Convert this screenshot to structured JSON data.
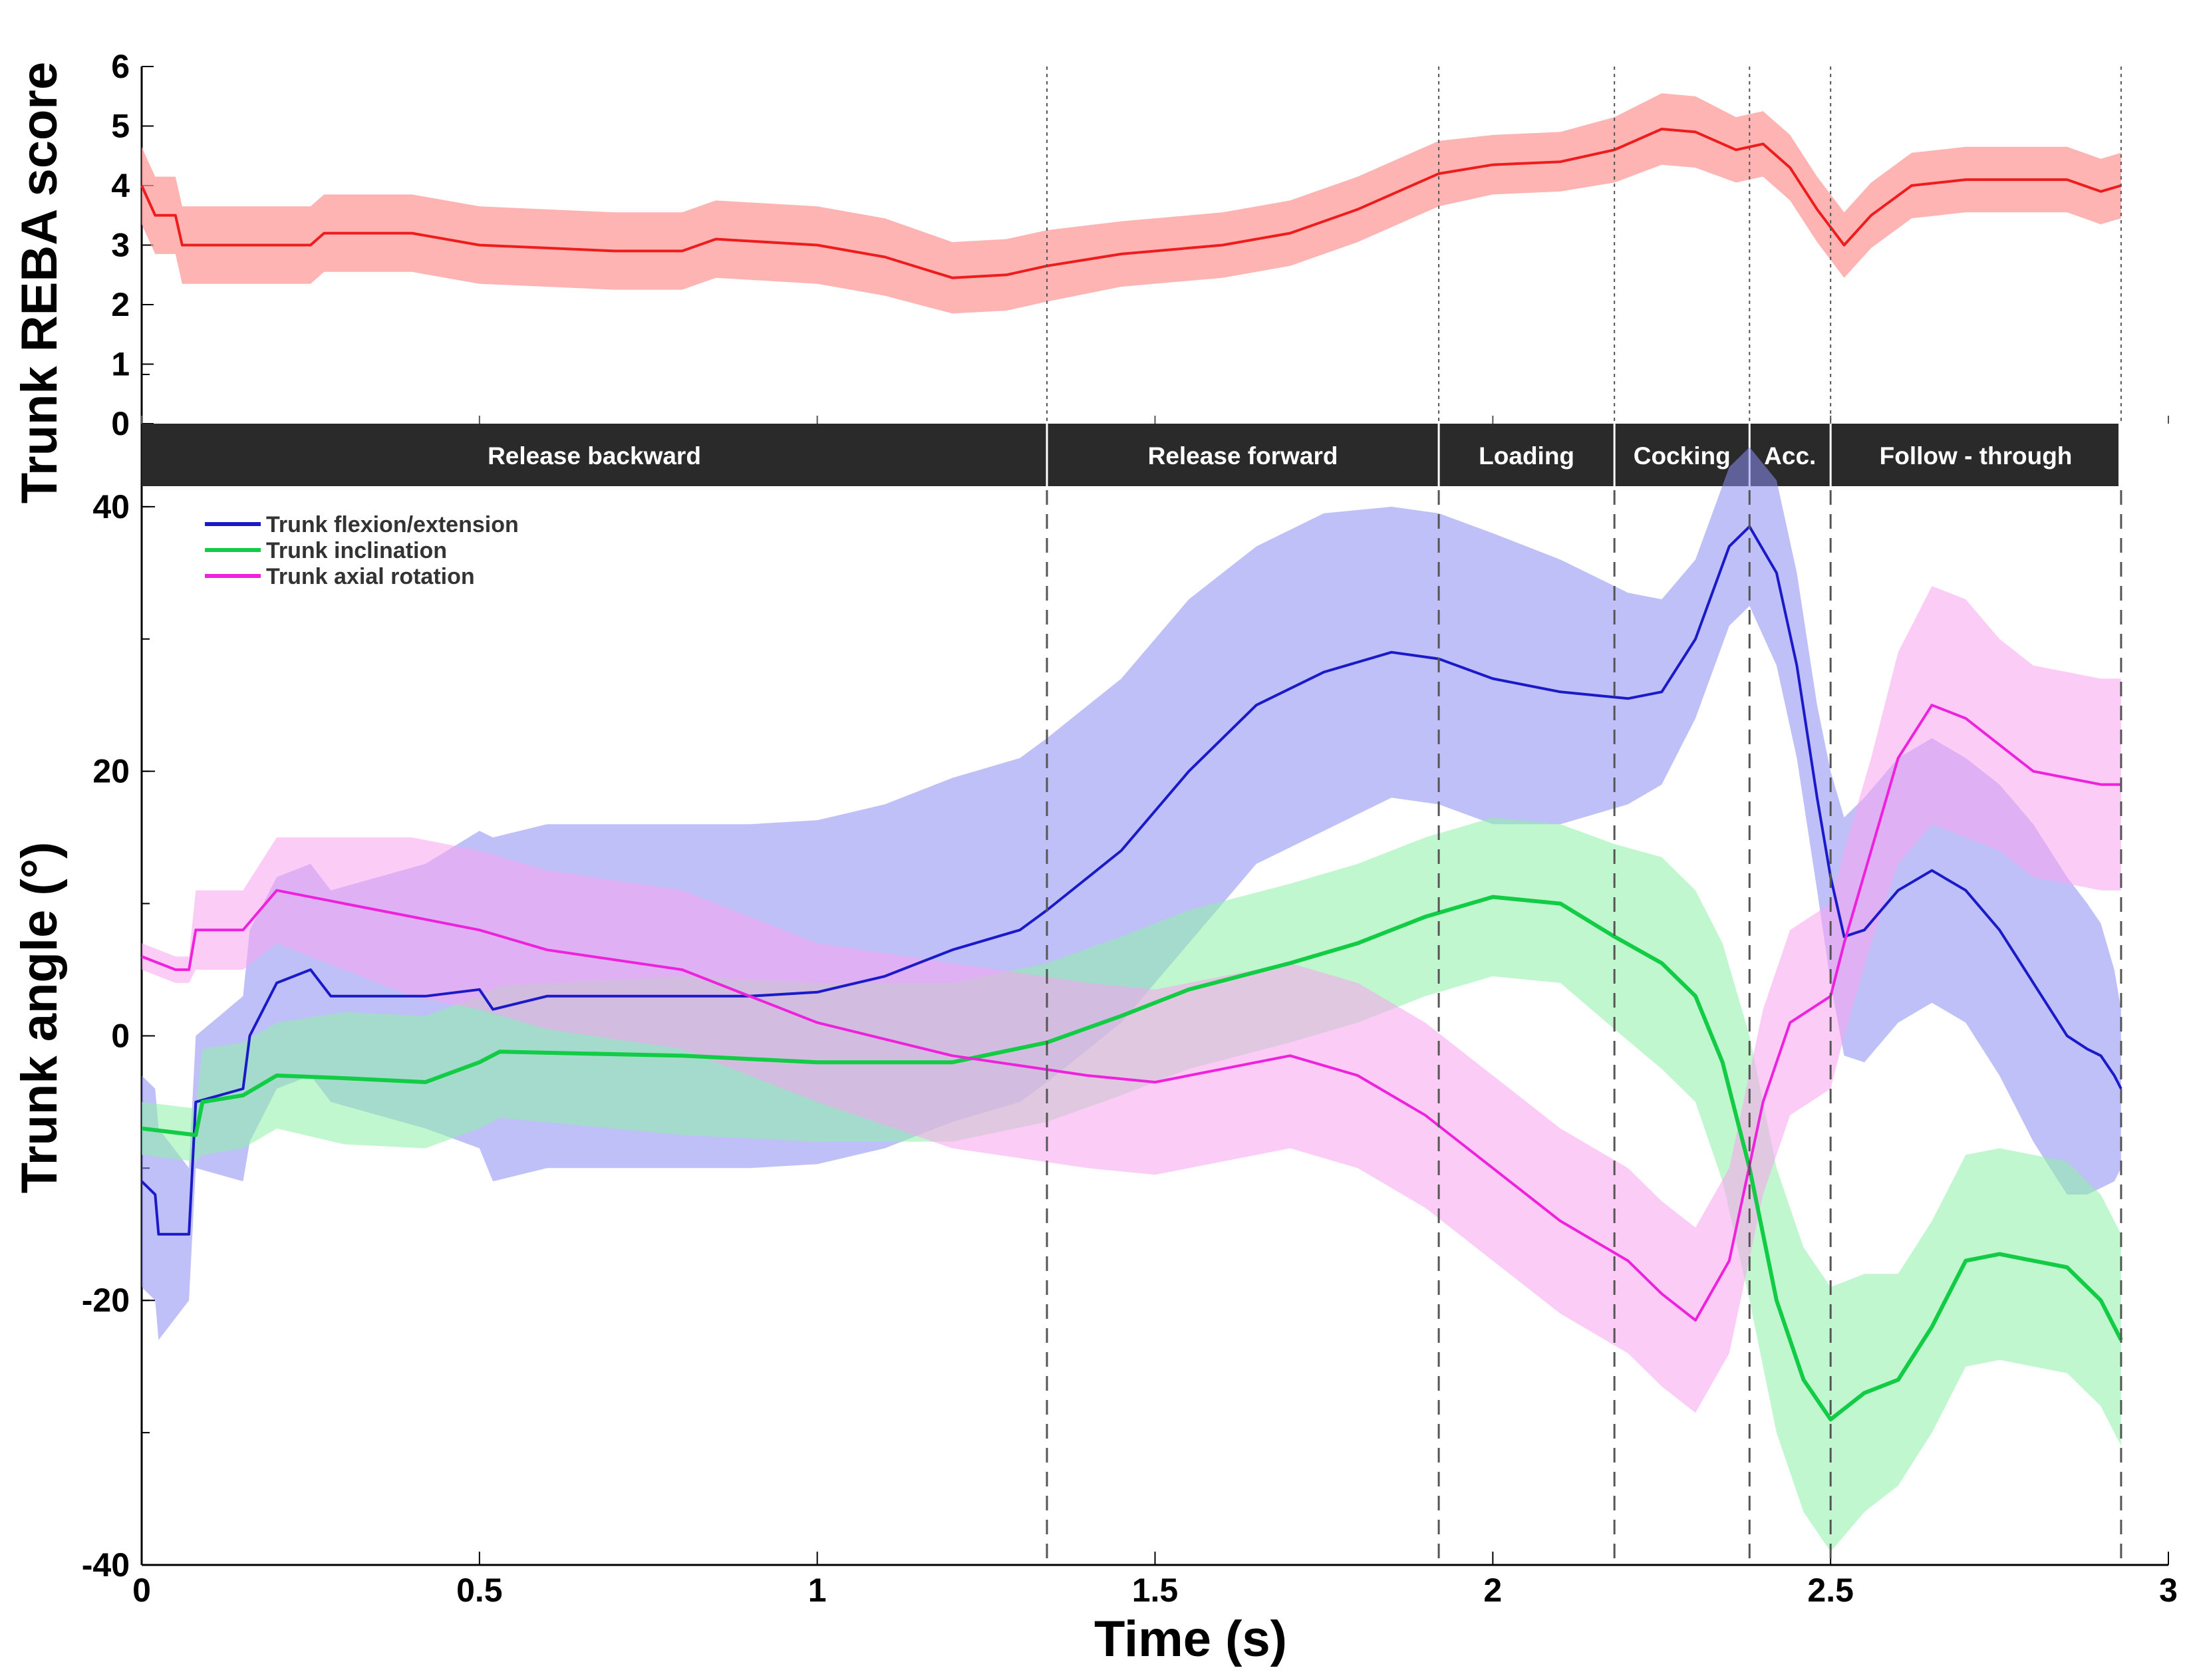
{
  "chart_data": [
    {
      "type": "line",
      "panel": "top",
      "ylabel": "Trunk REBA score",
      "xlim": [
        0,
        3
      ],
      "ylim": [
        0,
        6
      ],
      "yticks": [
        "0",
        "1",
        "2",
        "3",
        "4",
        "5",
        "6"
      ],
      "series": [
        {
          "name": "Trunk REBA score",
          "color": "#ee1c1c",
          "band_color": "#ff9b9b",
          "points": [
            [
              0,
              4.0
            ],
            [
              0.02,
              3.5
            ],
            [
              0.05,
              3.5
            ],
            [
              0.06,
              3.0
            ],
            [
              0.25,
              3.0
            ],
            [
              0.27,
              3.2
            ],
            [
              0.4,
              3.2
            ],
            [
              0.5,
              3.0
            ],
            [
              0.7,
              2.9
            ],
            [
              0.8,
              2.9
            ],
            [
              0.85,
              3.1
            ],
            [
              1.0,
              3.0
            ],
            [
              1.1,
              2.8
            ],
            [
              1.2,
              2.45
            ],
            [
              1.28,
              2.5
            ],
            [
              1.34,
              2.65
            ],
            [
              1.45,
              2.85
            ],
            [
              1.6,
              3.0
            ],
            [
              1.7,
              3.2
            ],
            [
              1.8,
              3.6
            ],
            [
              1.92,
              4.2
            ],
            [
              2.0,
              4.35
            ],
            [
              2.1,
              4.4
            ],
            [
              2.18,
              4.6
            ],
            [
              2.25,
              4.95
            ],
            [
              2.3,
              4.9
            ],
            [
              2.36,
              4.6
            ],
            [
              2.4,
              4.7
            ],
            [
              2.44,
              4.3
            ],
            [
              2.48,
              3.6
            ],
            [
              2.5,
              3.3
            ],
            [
              2.52,
              3.0
            ],
            [
              2.56,
              3.5
            ],
            [
              2.62,
              4.0
            ],
            [
              2.7,
              4.1
            ],
            [
              2.8,
              4.1
            ],
            [
              2.85,
              4.1
            ],
            [
              2.9,
              3.9
            ],
            [
              2.93,
              4.0
            ]
          ],
          "band": [
            0.65,
            0.65,
            0.65,
            0.65,
            0.65,
            0.65,
            0.65,
            0.65,
            0.65,
            0.65,
            0.65,
            0.65,
            0.65,
            0.6,
            0.6,
            0.6,
            0.55,
            0.55,
            0.55,
            0.55,
            0.55,
            0.5,
            0.5,
            0.55,
            0.6,
            0.6,
            0.55,
            0.55,
            0.55,
            0.55,
            0.55,
            0.55,
            0.55,
            0.55,
            0.55,
            0.55,
            0.55,
            0.55,
            0.55
          ]
        }
      ],
      "phases": [
        "Release backward",
        "Release forward",
        "Loading",
        "Cocking",
        "Acc.",
        "Follow - through"
      ],
      "phase_boundaries": [
        0,
        1.34,
        1.92,
        2.18,
        2.38,
        2.5,
        2.93
      ]
    },
    {
      "type": "line",
      "panel": "bottom",
      "title": "",
      "xlabel": "Time (s)",
      "ylabel": "Trunk angle    (°)",
      "xlim": [
        0,
        3
      ],
      "ylim": [
        -40,
        50
      ],
      "xticks": [
        "0",
        "0.5",
        "1",
        "1.5",
        "2",
        "2.5",
        "3"
      ],
      "yticks": [
        "-40",
        "-20",
        "0",
        "20",
        "40"
      ],
      "legend": "top-left",
      "series": [
        {
          "name": "Trunk flexion/extension",
          "color": "#1a1ac8",
          "band_color": "#8c8cf2",
          "points": [
            [
              0,
              -11
            ],
            [
              0.02,
              -12
            ],
            [
              0.025,
              -15
            ],
            [
              0.07,
              -15
            ],
            [
              0.08,
              -5
            ],
            [
              0.15,
              -4
            ],
            [
              0.16,
              0
            ],
            [
              0.2,
              4
            ],
            [
              0.25,
              5
            ],
            [
              0.28,
              3
            ],
            [
              0.42,
              3
            ],
            [
              0.5,
              3.5
            ],
            [
              0.52,
              2
            ],
            [
              0.6,
              3
            ],
            [
              0.9,
              3
            ],
            [
              1.0,
              3.3
            ],
            [
              1.1,
              4.5
            ],
            [
              1.2,
              6.5
            ],
            [
              1.3,
              8
            ],
            [
              1.34,
              9.5
            ],
            [
              1.45,
              14
            ],
            [
              1.55,
              20
            ],
            [
              1.65,
              25
            ],
            [
              1.75,
              27.5
            ],
            [
              1.85,
              29
            ],
            [
              1.92,
              28.5
            ],
            [
              2.0,
              27
            ],
            [
              2.1,
              26
            ],
            [
              2.2,
              25.5
            ],
            [
              2.25,
              26
            ],
            [
              2.3,
              30
            ],
            [
              2.35,
              37
            ],
            [
              2.38,
              38.5
            ],
            [
              2.42,
              35
            ],
            [
              2.45,
              28
            ],
            [
              2.48,
              18
            ],
            [
              2.5,
              12
            ],
            [
              2.52,
              7.5
            ],
            [
              2.55,
              8
            ],
            [
              2.6,
              11
            ],
            [
              2.65,
              12.5
            ],
            [
              2.7,
              11
            ],
            [
              2.75,
              8
            ],
            [
              2.8,
              4
            ],
            [
              2.85,
              0
            ],
            [
              2.88,
              -1
            ],
            [
              2.9,
              -1.5
            ],
            [
              2.92,
              -3
            ],
            [
              2.93,
              -4
            ]
          ],
          "band": [
            8,
            8,
            8,
            5,
            5,
            7,
            8,
            8,
            8,
            8,
            10,
            12,
            13,
            13,
            13,
            13,
            13,
            13,
            13,
            13,
            13,
            13,
            12,
            12,
            11,
            11,
            11,
            10,
            8,
            7,
            6,
            6,
            6,
            7,
            7,
            7,
            8,
            9,
            10,
            10,
            10,
            10,
            11,
            12,
            12,
            11,
            10,
            8,
            6
          ]
        },
        {
          "name": "Trunk inclination",
          "color": "#11cc44",
          "band_color": "#8ef0a8",
          "points": [
            [
              0,
              -7
            ],
            [
              0.08,
              -7.5
            ],
            [
              0.09,
              -5
            ],
            [
              0.15,
              -4.5
            ],
            [
              0.2,
              -3
            ],
            [
              0.3,
              -3.2
            ],
            [
              0.42,
              -3.5
            ],
            [
              0.5,
              -2
            ],
            [
              0.53,
              -1.2
            ],
            [
              0.8,
              -1.5
            ],
            [
              1.0,
              -2
            ],
            [
              1.2,
              -2
            ],
            [
              1.34,
              -0.5
            ],
            [
              1.45,
              1.5
            ],
            [
              1.55,
              3.5
            ],
            [
              1.7,
              5.5
            ],
            [
              1.8,
              7
            ],
            [
              1.9,
              9
            ],
            [
              2.0,
              10.5
            ],
            [
              2.1,
              10
            ],
            [
              2.18,
              7.5
            ],
            [
              2.25,
              5.5
            ],
            [
              2.3,
              3
            ],
            [
              2.34,
              -2
            ],
            [
              2.38,
              -10
            ],
            [
              2.42,
              -20
            ],
            [
              2.46,
              -26
            ],
            [
              2.5,
              -29
            ],
            [
              2.55,
              -27
            ],
            [
              2.6,
              -26
            ],
            [
              2.65,
              -22
            ],
            [
              2.7,
              -17
            ],
            [
              2.75,
              -16.5
            ],
            [
              2.8,
              -17
            ],
            [
              2.85,
              -17.5
            ],
            [
              2.9,
              -20
            ],
            [
              2.93,
              -23
            ]
          ],
          "band": [
            2,
            2,
            4,
            4,
            4,
            5,
            5,
            5,
            5,
            6,
            6,
            6,
            6,
            6,
            6,
            6,
            6,
            6,
            6,
            6,
            7,
            8,
            8,
            9,
            10,
            10,
            10,
            10,
            9,
            8,
            8,
            8,
            8,
            8,
            8,
            8,
            8
          ]
        },
        {
          "name": "Trunk axial rotation",
          "color": "#ee22dd",
          "band_color": "#f8a2ee",
          "points": [
            [
              0,
              6
            ],
            [
              0.05,
              5
            ],
            [
              0.07,
              5
            ],
            [
              0.08,
              8
            ],
            [
              0.15,
              8
            ],
            [
              0.2,
              11
            ],
            [
              0.3,
              10
            ],
            [
              0.4,
              9
            ],
            [
              0.5,
              8
            ],
            [
              0.6,
              6.5
            ],
            [
              0.8,
              5
            ],
            [
              1.0,
              1
            ],
            [
              1.2,
              -1.5
            ],
            [
              1.4,
              -3
            ],
            [
              1.5,
              -3.5
            ],
            [
              1.6,
              -2.5
            ],
            [
              1.7,
              -1.5
            ],
            [
              1.8,
              -3
            ],
            [
              1.9,
              -6
            ],
            [
              2.0,
              -10
            ],
            [
              2.1,
              -14
            ],
            [
              2.2,
              -17
            ],
            [
              2.25,
              -19.5
            ],
            [
              2.3,
              -21.5
            ],
            [
              2.35,
              -17
            ],
            [
              2.4,
              -5
            ],
            [
              2.44,
              1
            ],
            [
              2.5,
              3
            ],
            [
              2.52,
              7
            ],
            [
              2.56,
              14
            ],
            [
              2.6,
              21
            ],
            [
              2.65,
              25
            ],
            [
              2.7,
              24
            ],
            [
              2.75,
              22
            ],
            [
              2.8,
              20
            ],
            [
              2.85,
              19.5
            ],
            [
              2.9,
              19
            ],
            [
              2.93,
              19
            ]
          ],
          "band": [
            1,
            1,
            1,
            3,
            3,
            4,
            5,
            6,
            6,
            6,
            6,
            6,
            7,
            7,
            7,
            7,
            7,
            7,
            7,
            7,
            7,
            7,
            7,
            7,
            7,
            7,
            7,
            7,
            7,
            7,
            8,
            9,
            9,
            8,
            8,
            8,
            8,
            8
          ]
        }
      ]
    }
  ]
}
